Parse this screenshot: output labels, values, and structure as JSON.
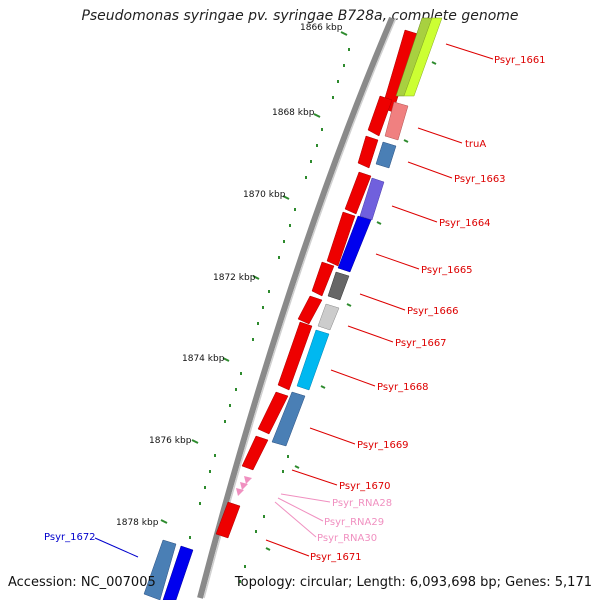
{
  "title": "Pseudomonas syringae pv. syringae B728a, complete genome",
  "accession": "Accession: NC_007005",
  "topology": "Topology: circular; Length: 6,093,698 bp; Genes: 5,171",
  "ticks": [
    "1866 kbp",
    "1868 kbp",
    "1870 kbp",
    "1872 kbp",
    "1874 kbp",
    "1876 kbp",
    "1878 kbp"
  ],
  "genes": [
    {
      "label": "Psyr_1661",
      "color": "#dd0000"
    },
    {
      "label": "truA",
      "color": "#dd0000"
    },
    {
      "label": "Psyr_1663",
      "color": "#dd0000"
    },
    {
      "label": "Psyr_1664",
      "color": "#dd0000"
    },
    {
      "label": "Psyr_1665",
      "color": "#dd0000"
    },
    {
      "label": "Psyr_1666",
      "color": "#dd0000"
    },
    {
      "label": "Psyr_1667",
      "color": "#dd0000"
    },
    {
      "label": "Psyr_1668",
      "color": "#dd0000"
    },
    {
      "label": "Psyr_1669",
      "color": "#dd0000"
    },
    {
      "label": "Psyr_1670",
      "color": "#dd0000"
    },
    {
      "label": "Psyr_RNA28",
      "color": "#f090c0"
    },
    {
      "label": "Psyr_RNA29",
      "color": "#f090c0"
    },
    {
      "label": "Psyr_RNA30",
      "color": "#f090c0"
    },
    {
      "label": "Psyr_1671",
      "color": "#dd0000"
    },
    {
      "label": "Psyr_1672",
      "color": "#0000cc"
    }
  ],
  "colors": {
    "forward_gene": "#ee0000",
    "backbone": "#808080",
    "tick": "#2e8b2e",
    "rna": "#f090c0",
    "label_red": "#dd0000",
    "label_blue": "#0000cc"
  }
}
